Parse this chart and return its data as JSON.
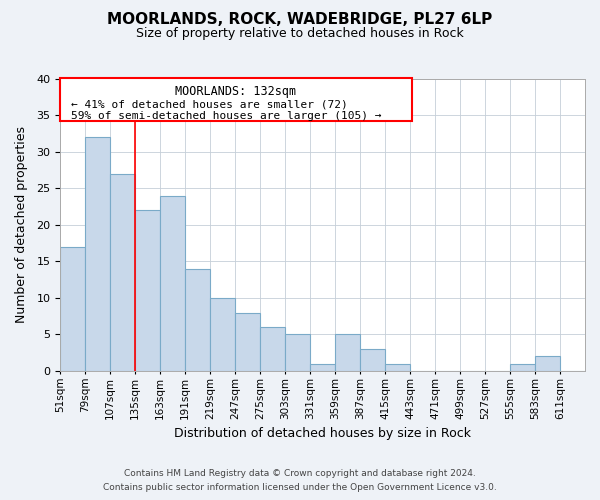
{
  "title": "MOORLANDS, ROCK, WADEBRIDGE, PL27 6LP",
  "subtitle": "Size of property relative to detached houses in Rock",
  "xlabel": "Distribution of detached houses by size in Rock",
  "ylabel": "Number of detached properties",
  "bar_color": "#c8d8ea",
  "bar_edge_color": "#7aaac8",
  "bins": [
    "51sqm",
    "79sqm",
    "107sqm",
    "135sqm",
    "163sqm",
    "191sqm",
    "219sqm",
    "247sqm",
    "275sqm",
    "303sqm",
    "331sqm",
    "359sqm",
    "387sqm",
    "415sqm",
    "443sqm",
    "471sqm",
    "499sqm",
    "527sqm",
    "555sqm",
    "583sqm",
    "611sqm"
  ],
  "values": [
    17,
    32,
    27,
    22,
    24,
    14,
    10,
    8,
    6,
    5,
    1,
    5,
    3,
    1,
    0,
    0,
    0,
    0,
    1,
    2,
    0
  ],
  "annotation_title": "MOORLANDS: 132sqm",
  "annotation_line1": "← 41% of detached houses are smaller (72)",
  "annotation_line2": "59% of semi-detached houses are larger (105) →",
  "vline_bin_index": 3,
  "ylim": [
    0,
    40
  ],
  "yticks": [
    0,
    5,
    10,
    15,
    20,
    25,
    30,
    35,
    40
  ],
  "footnote1": "Contains HM Land Registry data © Crown copyright and database right 2024.",
  "footnote2": "Contains public sector information licensed under the Open Government Licence v3.0.",
  "background_color": "#eef2f7",
  "plot_bg_color": "#ffffff",
  "grid_color": "#c5cfd8"
}
